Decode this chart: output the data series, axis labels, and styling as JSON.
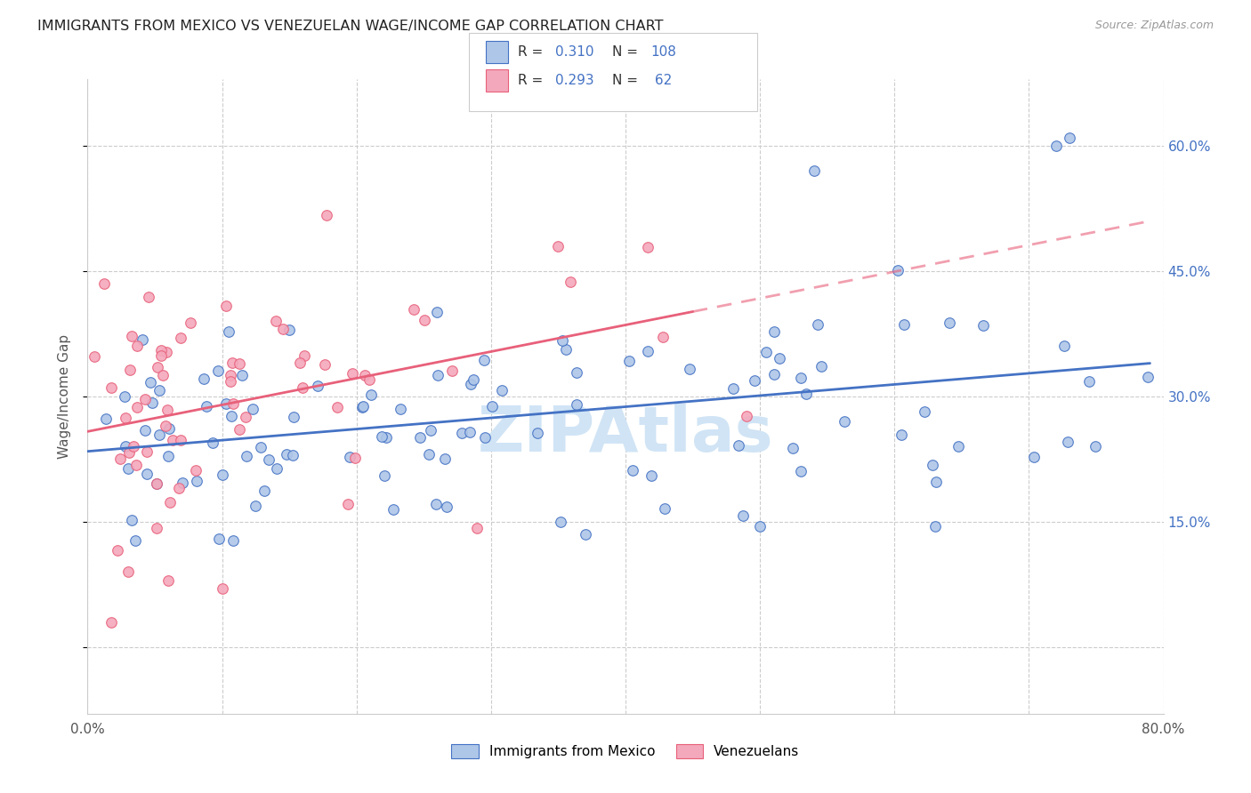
{
  "title": "IMMIGRANTS FROM MEXICO VS VENEZUELAN WAGE/INCOME GAP CORRELATION CHART",
  "source": "Source: ZipAtlas.com",
  "ylabel": "Wage/Income Gap",
  "xlim": [
    0.0,
    0.8
  ],
  "ylim": [
    -0.08,
    0.68
  ],
  "ytick_vals": [
    0.0,
    0.15,
    0.3,
    0.45,
    0.6
  ],
  "ytick_labels": [
    "",
    "15.0%",
    "30.0%",
    "45.0%",
    "60.0%"
  ],
  "xtick_vals": [
    0.0,
    0.1,
    0.2,
    0.3,
    0.4,
    0.5,
    0.6,
    0.7,
    0.8
  ],
  "xtick_labels": [
    "0.0%",
    "",
    "",
    "",
    "",
    "",
    "",
    "",
    "80.0%"
  ],
  "mexico_color": "#aec6e8",
  "venezuela_color": "#f4a8bc",
  "mexico_edge_color": "#4472c4",
  "venezuela_edge_color": "#e8607a",
  "mexico_line_color": "#4472c4",
  "venezuela_line_color": "#e8607a",
  "watermark": "ZIPAtlas",
  "watermark_color": "#d0e4f5",
  "bg_color": "#ffffff",
  "grid_color": "#cccccc",
  "right_axis_color": "#4472c4",
  "legend_r1": "0.310",
  "legend_n1": "108",
  "legend_r2": "0.293",
  "legend_n2": " 62",
  "scatter_size": 70,
  "line_width": 2.0
}
